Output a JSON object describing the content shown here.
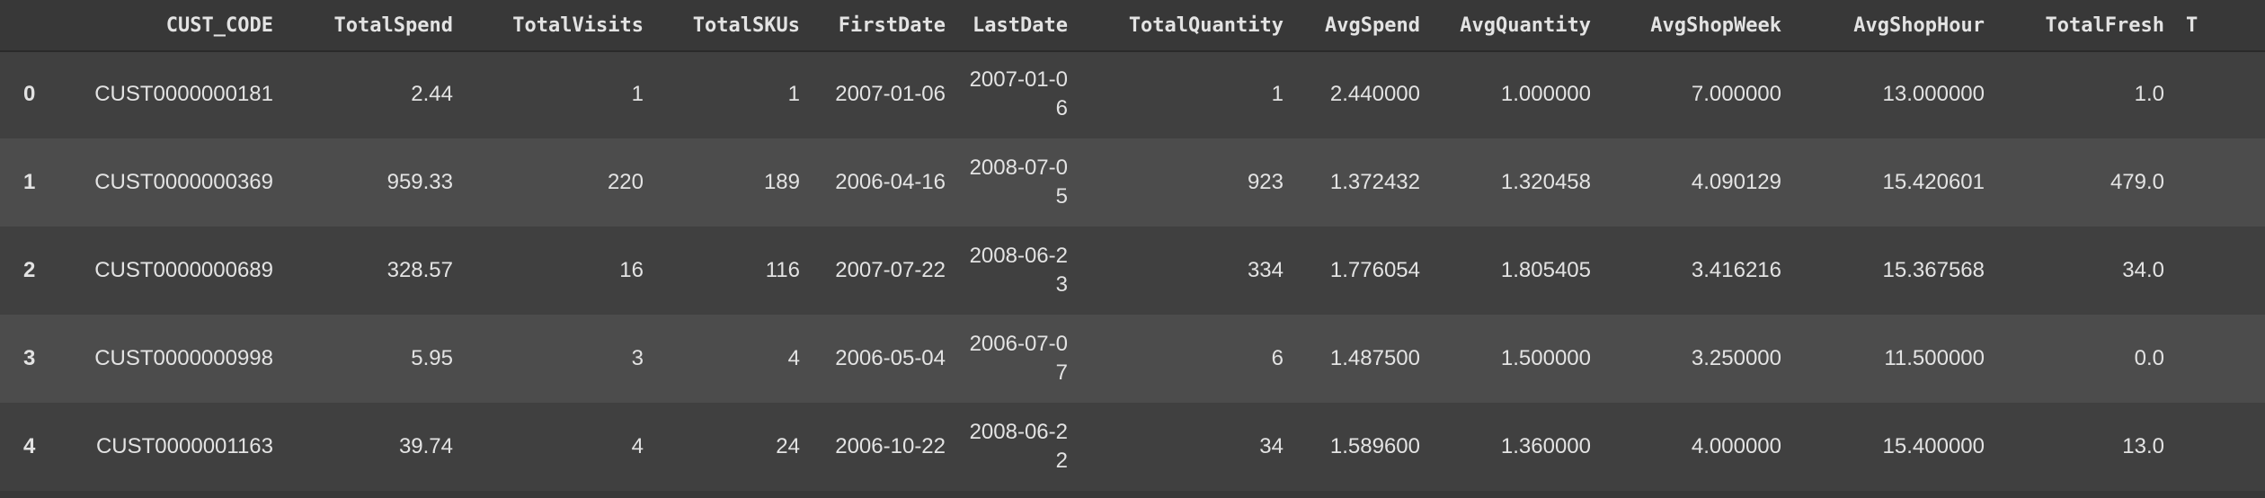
{
  "columns": [
    "",
    "CUST_CODE",
    "TotalSpend",
    "TotalVisits",
    "TotalSKUs",
    "FirstDate",
    "LastDate",
    "TotalQuantity",
    "AvgSpend",
    "AvgQuantity",
    "AvgShopWeek",
    "AvgShopHour",
    "TotalFresh",
    "T"
  ],
  "rows": [
    {
      "index": "0",
      "cust_code": "CUST0000000181",
      "total_spend": "2.44",
      "total_visits": "1",
      "total_skus": "1",
      "first_date": "2007-01-06",
      "last_date": "2007-01-06",
      "total_quantity": "1",
      "avg_spend": "2.440000",
      "avg_quantity": "1.000000",
      "avg_shop_week": "7.000000",
      "avg_shop_hour": "13.000000",
      "total_fresh": "1.0"
    },
    {
      "index": "1",
      "cust_code": "CUST0000000369",
      "total_spend": "959.33",
      "total_visits": "220",
      "total_skus": "189",
      "first_date": "2006-04-16",
      "last_date": "2008-07-05",
      "total_quantity": "923",
      "avg_spend": "1.372432",
      "avg_quantity": "1.320458",
      "avg_shop_week": "4.090129",
      "avg_shop_hour": "15.420601",
      "total_fresh": "479.0"
    },
    {
      "index": "2",
      "cust_code": "CUST0000000689",
      "total_spend": "328.57",
      "total_visits": "16",
      "total_skus": "116",
      "first_date": "2007-07-22",
      "last_date": "2008-06-23",
      "total_quantity": "334",
      "avg_spend": "1.776054",
      "avg_quantity": "1.805405",
      "avg_shop_week": "3.416216",
      "avg_shop_hour": "15.367568",
      "total_fresh": "34.0"
    },
    {
      "index": "3",
      "cust_code": "CUST0000000998",
      "total_spend": "5.95",
      "total_visits": "3",
      "total_skus": "4",
      "first_date": "2006-05-04",
      "last_date": "2006-07-07",
      "total_quantity": "6",
      "avg_spend": "1.487500",
      "avg_quantity": "1.500000",
      "avg_shop_week": "3.250000",
      "avg_shop_hour": "11.500000",
      "total_fresh": "0.0"
    },
    {
      "index": "4",
      "cust_code": "CUST0000001163",
      "total_spend": "39.74",
      "total_visits": "4",
      "total_skus": "24",
      "first_date": "2006-10-22",
      "last_date": "2008-06-22",
      "total_quantity": "34",
      "avg_spend": "1.589600",
      "avg_quantity": "1.360000",
      "avg_shop_week": "4.000000",
      "avg_shop_hour": "15.400000",
      "total_fresh": "13.0"
    }
  ],
  "colors": {
    "background": "#383838",
    "row_odd": "#404040",
    "row_even": "#4c4c4c",
    "text": "#e3e3e3"
  }
}
